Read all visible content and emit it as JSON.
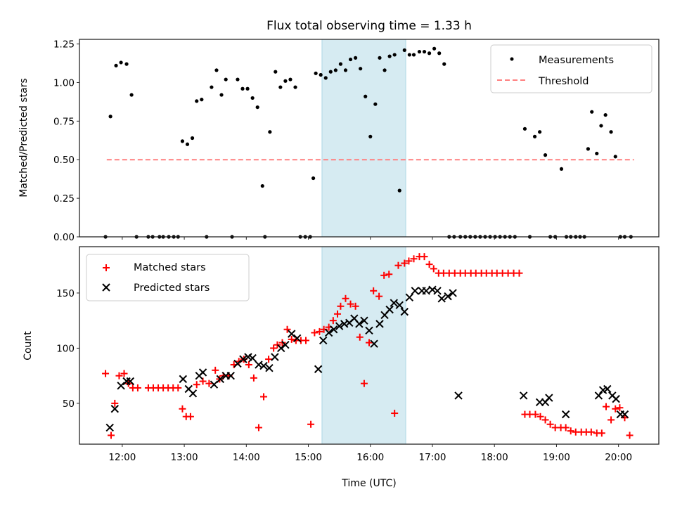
{
  "chart_data": [
    {
      "type": "scatter",
      "panel": "top",
      "title": "Flux total observing time = 1.33 h",
      "xlabel": "",
      "ylabel": "Matched/Predicted stars",
      "xlim": [
        11.31,
        20.65
      ],
      "ylim": [
        0.0,
        1.28
      ],
      "yticks": [
        0.0,
        0.25,
        0.5,
        0.75,
        1.0,
        1.25
      ],
      "ytick_labels": [
        "0.00",
        "0.25",
        "0.50",
        "0.75",
        "1.00",
        "1.25"
      ],
      "xticks": [
        12,
        13,
        14,
        15,
        16,
        17,
        18,
        19,
        20
      ],
      "xtick_labels": [],
      "grid": false,
      "legend": {
        "placement": "top-right",
        "entries": [
          "Measurements",
          "Threshold"
        ]
      },
      "highlight_span": {
        "x": [
          15.22,
          16.57
        ],
        "color": "#add8e6"
      },
      "threshold": {
        "name": "Threshold",
        "y": 0.5,
        "x": [
          11.75,
          20.25
        ],
        "color": "#ff8080",
        "style": "dashed"
      },
      "series": [
        {
          "name": "Measurements",
          "marker": "dot",
          "color": "#000000",
          "x": [
            11.73,
            11.81,
            11.9,
            11.98,
            12.07,
            12.15,
            12.23,
            12.42,
            12.49,
            12.6,
            12.66,
            12.75,
            12.83,
            12.9,
            12.97,
            13.05,
            13.13,
            13.2,
            13.28,
            13.36,
            13.44,
            13.52,
            13.6,
            13.67,
            13.77,
            13.86,
            13.94,
            14.02,
            14.1,
            14.18,
            14.26,
            14.3,
            14.38,
            14.47,
            14.55,
            14.63,
            14.71,
            14.79,
            14.87,
            14.95,
            15.03,
            15.08,
            15.12,
            15.2,
            15.28,
            15.36,
            15.44,
            15.52,
            15.6,
            15.68,
            15.76,
            15.84,
            15.92,
            16.0,
            16.08,
            16.15,
            16.23,
            16.31,
            16.39,
            16.47,
            16.55,
            16.63,
            16.7,
            16.79,
            16.87,
            16.95,
            17.03,
            17.11,
            17.19,
            17.27,
            17.35,
            17.45,
            17.53,
            17.61,
            17.69,
            17.77,
            17.85,
            17.93,
            18.01,
            18.09,
            18.17,
            18.25,
            18.33,
            18.49,
            18.57,
            18.65,
            18.73,
            18.82,
            18.9,
            18.98,
            19.08,
            19.16,
            19.23,
            19.31,
            19.38,
            19.45,
            19.51,
            19.57,
            19.65,
            19.72,
            19.79,
            19.88,
            19.95,
            20.03,
            20.1,
            20.2
          ],
          "y": [
            0.0,
            0.78,
            1.11,
            1.13,
            1.12,
            0.92,
            0.0,
            0.0,
            0.0,
            0.0,
            0.0,
            0.0,
            0.0,
            0.0,
            0.62,
            0.6,
            0.64,
            0.88,
            0.89,
            0.0,
            0.97,
            1.08,
            0.92,
            1.02,
            0.0,
            1.02,
            0.96,
            0.96,
            0.9,
            0.84,
            0.33,
            0.0,
            0.68,
            1.07,
            0.97,
            1.01,
            1.02,
            0.97,
            0.0,
            0.0,
            0.0,
            0.38,
            1.06,
            1.05,
            1.03,
            1.07,
            1.08,
            1.12,
            1.08,
            1.15,
            1.16,
            1.09,
            0.91,
            0.65,
            0.86,
            1.16,
            1.08,
            1.17,
            1.18,
            0.3,
            1.21,
            1.18,
            1.18,
            1.2,
            1.2,
            1.19,
            1.22,
            1.19,
            1.12,
            0.0,
            0.0,
            0.0,
            0.0,
            0.0,
            0.0,
            0.0,
            0.0,
            0.0,
            0.0,
            0.0,
            0.0,
            0.0,
            0.0,
            0.7,
            0.0,
            0.65,
            0.68,
            0.53,
            0.0,
            0.0,
            0.44,
            0.0,
            0.0,
            0.0,
            0.0,
            0.0,
            0.57,
            0.81,
            0.54,
            0.72,
            0.79,
            0.68,
            0.52,
            0.0,
            0.0,
            0.0
          ]
        }
      ]
    },
    {
      "type": "scatter",
      "panel": "bottom",
      "title": "",
      "xlabel": "Time (UTC)",
      "ylabel": "Count",
      "xlim": [
        11.31,
        20.65
      ],
      "ylim": [
        13,
        192
      ],
      "yticks": [
        50,
        100,
        150
      ],
      "ytick_labels": [
        "50",
        "100",
        "150"
      ],
      "xticks": [
        12,
        13,
        14,
        15,
        16,
        17,
        18,
        19,
        20
      ],
      "xtick_labels": [
        "12:00",
        "13:00",
        "14:00",
        "15:00",
        "16:00",
        "17:00",
        "18:00",
        "19:00",
        "20:00"
      ],
      "grid": false,
      "legend": {
        "placement": "top-left",
        "entries": [
          "Matched stars",
          "Predicted stars"
        ]
      },
      "highlight_span": {
        "x": [
          15.22,
          16.57
        ],
        "color": "#add8e6"
      },
      "series": [
        {
          "name": "Matched stars",
          "marker": "plus",
          "color": "#ff0000",
          "x": [
            11.73,
            11.82,
            11.88,
            11.95,
            12.03,
            12.1,
            12.17,
            12.25,
            12.42,
            12.5,
            12.58,
            12.66,
            12.74,
            12.82,
            12.9,
            12.97,
            13.03,
            13.1,
            13.2,
            13.3,
            13.4,
            13.5,
            13.57,
            13.63,
            13.72,
            13.8,
            13.88,
            13.96,
            14.04,
            14.12,
            14.2,
            14.28,
            14.36,
            14.44,
            14.5,
            14.58,
            14.66,
            14.73,
            14.8,
            14.88,
            14.96,
            15.04,
            15.1,
            15.18,
            15.25,
            15.33,
            15.4,
            15.47,
            15.52,
            15.6,
            15.68,
            15.76,
            15.83,
            15.9,
            15.98,
            16.05,
            16.14,
            16.22,
            16.3,
            16.39,
            16.45,
            16.55,
            16.62,
            16.7,
            16.79,
            16.87,
            16.95,
            17.02,
            17.1,
            17.18,
            17.27,
            17.36,
            17.45,
            17.53,
            17.62,
            17.7,
            17.79,
            17.87,
            17.96,
            18.04,
            18.13,
            18.22,
            18.31,
            18.4,
            18.49,
            18.57,
            18.66,
            18.74,
            18.82,
            18.9,
            18.98,
            19.07,
            19.15,
            19.23,
            19.31,
            19.4,
            19.48,
            19.56,
            19.65,
            19.73,
            19.8,
            19.88,
            19.95,
            20.02,
            20.1,
            20.18
          ],
          "y": [
            77,
            21,
            50,
            75,
            77,
            68,
            64,
            64,
            64,
            64,
            64,
            64,
            64,
            64,
            64,
            45,
            38,
            38,
            67,
            70,
            68,
            80,
            72,
            75,
            75,
            85,
            88,
            90,
            85,
            73,
            28,
            56,
            90,
            100,
            103,
            105,
            117,
            108,
            107,
            107,
            107,
            31,
            114,
            115,
            117,
            119,
            125,
            131,
            138,
            145,
            140,
            138,
            110,
            68,
            105,
            152,
            147,
            166,
            167,
            41,
            175,
            177,
            179,
            181,
            183,
            183,
            176,
            172,
            168,
            168,
            168,
            168,
            168,
            168,
            168,
            168,
            168,
            168,
            168,
            168,
            168,
            168,
            168,
            168,
            40,
            40,
            40,
            38,
            35,
            31,
            28,
            28,
            28,
            25,
            24,
            24,
            24,
            24,
            23,
            23,
            47,
            35,
            45,
            46,
            37,
            21
          ],
          "note": "estimated from pixels"
        },
        {
          "name": "Predicted stars",
          "marker": "x",
          "color": "#000000",
          "x": [
            11.8,
            11.88,
            11.98,
            12.07,
            12.13,
            12.98,
            13.07,
            13.14,
            13.24,
            13.3,
            13.48,
            13.58,
            13.67,
            13.75,
            13.86,
            13.95,
            14.03,
            14.1,
            14.2,
            14.28,
            14.37,
            14.46,
            14.56,
            14.63,
            14.73,
            14.82,
            15.16,
            15.24,
            15.33,
            15.41,
            15.5,
            15.58,
            15.66,
            15.74,
            15.82,
            15.9,
            15.98,
            16.06,
            16.15,
            16.23,
            16.31,
            16.38,
            16.47,
            16.55,
            16.63,
            16.72,
            16.83,
            16.9,
            17.0,
            17.08,
            17.15,
            17.25,
            17.33,
            17.42,
            18.47,
            18.73,
            18.82,
            18.88,
            19.15,
            19.68,
            19.75,
            19.82,
            19.9,
            19.96,
            20.03,
            20.1
          ],
          "y": [
            28,
            45,
            66,
            70,
            70,
            72,
            63,
            59,
            75,
            78,
            67,
            72,
            75,
            75,
            86,
            90,
            92,
            91,
            85,
            84,
            82,
            92,
            100,
            103,
            113,
            109,
            81,
            107,
            114,
            117,
            120,
            122,
            123,
            127,
            122,
            125,
            116,
            104,
            122,
            130,
            135,
            141,
            139,
            133,
            146,
            152,
            152,
            152,
            153,
            152,
            145,
            147,
            150,
            57,
            57,
            51,
            51,
            55,
            40,
            57,
            62,
            63,
            57,
            54,
            40,
            40
          ]
        }
      ]
    }
  ]
}
